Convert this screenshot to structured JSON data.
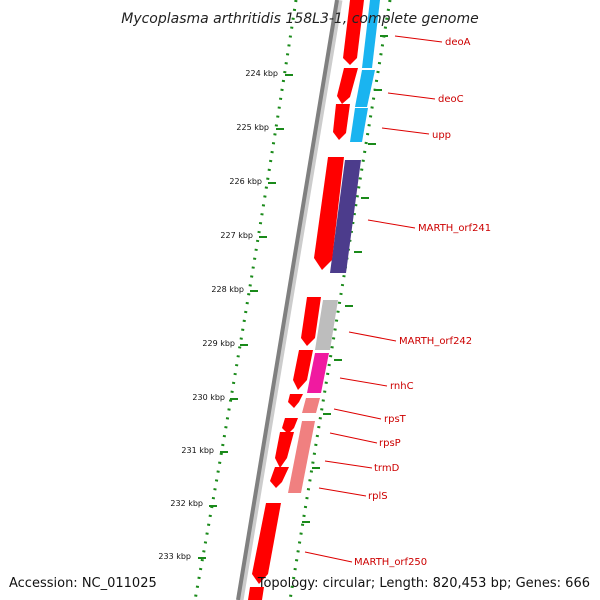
{
  "title": "Mycoplasma arthritidis 158L3-1, complete genome",
  "footer": {
    "accession": "Accession: NC_011025",
    "topology": "Topology: circular; Length: 820,453 bp; Genes: 666"
  },
  "colors": {
    "backbone": "#808080",
    "tick_dots": "#1a8a1a",
    "forward_gene": "#ff0000",
    "label_text": "#cc0000",
    "cog_cyan": "#1ab4f0",
    "cog_purple": "#4c3c8c",
    "cog_grey": "#bdbdbd",
    "cog_magenta": "#f01aa0",
    "cog_pink": "#f08080"
  },
  "kbp_ticks": [
    "224 kbp",
    "225 kbp",
    "226 kbp",
    "227 kbp",
    "228 kbp",
    "229 kbp",
    "230 kbp",
    "231 kbp",
    "232 kbp",
    "233 kbp"
  ],
  "gene_labels": [
    "deoA",
    "deoC",
    "upp",
    "MARTH_orf241",
    "MARTH_orf242",
    "rnhC",
    "rpsT",
    "rpsP",
    "trmD",
    "rplS",
    "MARTH_orf250"
  ]
}
